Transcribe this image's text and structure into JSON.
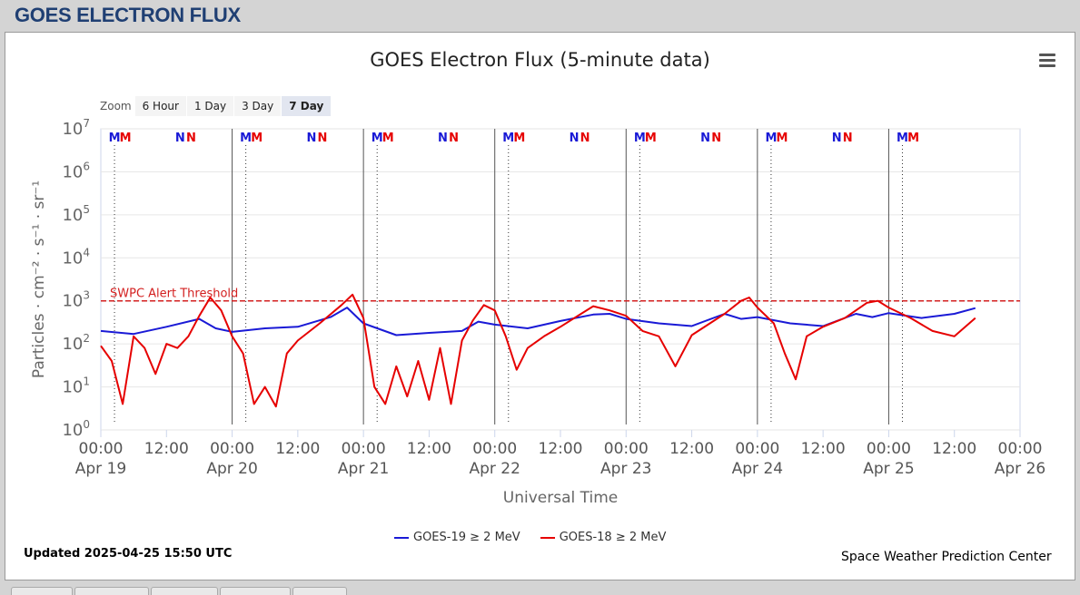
{
  "page": {
    "header_title": "GOES ELECTRON FLUX"
  },
  "zoom": {
    "label": "Zoom",
    "buttons": [
      "6 Hour",
      "1 Day",
      "3 Day",
      "7 Day"
    ],
    "active": "7 Day"
  },
  "footer": {
    "updated": "Updated 2025-04-25 15:50 UTC",
    "credit": "Space Weather Prediction Center"
  },
  "colors": {
    "goes19": "#1a1ad6",
    "goes18": "#e60000",
    "threshold": "#d32020",
    "header_text": "#1f3f73"
  },
  "icons": {
    "menu": "hamburger-menu-icon"
  },
  "chart_data": {
    "type": "line",
    "title": "GOES Electron Flux (5-minute data)",
    "xlabel": "Universal Time",
    "ylabel": "Particles · cm⁻² · s⁻¹ · sr⁻¹",
    "yscale": "log",
    "ylim": [
      1,
      10000000
    ],
    "xlim": [
      "2025-04-19 00:00",
      "2025-04-26 00:00"
    ],
    "y_ticks": [
      "10^0",
      "10^1",
      "10^2",
      "10^3",
      "10^4",
      "10^5",
      "10^6",
      "10^7"
    ],
    "x_ticks": [
      {
        "time": "00:00",
        "date": "Apr 19"
      },
      {
        "time": "12:00",
        "date": ""
      },
      {
        "time": "00:00",
        "date": "Apr 20"
      },
      {
        "time": "12:00",
        "date": ""
      },
      {
        "time": "00:00",
        "date": "Apr 21"
      },
      {
        "time": "12:00",
        "date": ""
      },
      {
        "time": "00:00",
        "date": "Apr 22"
      },
      {
        "time": "12:00",
        "date": ""
      },
      {
        "time": "00:00",
        "date": "Apr 23"
      },
      {
        "time": "12:00",
        "date": ""
      },
      {
        "time": "00:00",
        "date": "Apr 24"
      },
      {
        "time": "12:00",
        "date": ""
      },
      {
        "time": "00:00",
        "date": "Apr 25"
      },
      {
        "time": "12:00",
        "date": ""
      },
      {
        "time": "00:00",
        "date": "Apr 26"
      }
    ],
    "threshold": {
      "label": "SWPC Alert Threshold",
      "value": 1000
    },
    "markers": [
      {
        "label": "M",
        "series": "GOES-19",
        "x": "2025-04-19 02:30"
      },
      {
        "label": "M",
        "series": "GOES-18",
        "x": "2025-04-19 04:30"
      },
      {
        "label": "N",
        "series": "GOES-19",
        "x": "2025-04-19 14:30"
      },
      {
        "label": "N",
        "series": "GOES-18",
        "x": "2025-04-19 16:30"
      },
      {
        "label": "M",
        "series": "GOES-19",
        "x": "2025-04-20 02:30"
      },
      {
        "label": "M",
        "series": "GOES-18",
        "x": "2025-04-20 04:30"
      },
      {
        "label": "N",
        "series": "GOES-19",
        "x": "2025-04-20 14:30"
      },
      {
        "label": "N",
        "series": "GOES-18",
        "x": "2025-04-20 16:30"
      },
      {
        "label": "M",
        "series": "GOES-19",
        "x": "2025-04-21 02:30"
      },
      {
        "label": "M",
        "series": "GOES-18",
        "x": "2025-04-21 04:30"
      },
      {
        "label": "N",
        "series": "GOES-19",
        "x": "2025-04-21 14:30"
      },
      {
        "label": "N",
        "series": "GOES-18",
        "x": "2025-04-21 16:30"
      },
      {
        "label": "M",
        "series": "GOES-19",
        "x": "2025-04-22 02:30"
      },
      {
        "label": "M",
        "series": "GOES-18",
        "x": "2025-04-22 04:30"
      },
      {
        "label": "N",
        "series": "GOES-19",
        "x": "2025-04-22 14:30"
      },
      {
        "label": "N",
        "series": "GOES-18",
        "x": "2025-04-22 16:30"
      },
      {
        "label": "M",
        "series": "GOES-19",
        "x": "2025-04-23 02:30"
      },
      {
        "label": "M",
        "series": "GOES-18",
        "x": "2025-04-23 04:30"
      },
      {
        "label": "N",
        "series": "GOES-19",
        "x": "2025-04-23 14:30"
      },
      {
        "label": "N",
        "series": "GOES-18",
        "x": "2025-04-23 16:30"
      },
      {
        "label": "M",
        "series": "GOES-19",
        "x": "2025-04-24 02:30"
      },
      {
        "label": "M",
        "series": "GOES-18",
        "x": "2025-04-24 04:30"
      },
      {
        "label": "N",
        "series": "GOES-19",
        "x": "2025-04-24 14:30"
      },
      {
        "label": "N",
        "series": "GOES-18",
        "x": "2025-04-24 16:30"
      },
      {
        "label": "M",
        "series": "GOES-19",
        "x": "2025-04-25 02:30"
      },
      {
        "label": "M",
        "series": "GOES-18",
        "x": "2025-04-25 04:30"
      }
    ],
    "series": [
      {
        "name": "GOES-19 ≥ 2 MeV",
        "color": "#1a1ad6",
        "points": [
          [
            "2025-04-19 00:00",
            200
          ],
          [
            "2025-04-19 06:00",
            170
          ],
          [
            "2025-04-19 12:00",
            250
          ],
          [
            "2025-04-19 18:00",
            380
          ],
          [
            "2025-04-19 21:00",
            230
          ],
          [
            "2025-04-20 00:00",
            190
          ],
          [
            "2025-04-20 06:00",
            230
          ],
          [
            "2025-04-20 12:00",
            250
          ],
          [
            "2025-04-20 18:00",
            420
          ],
          [
            "2025-04-20 21:00",
            700
          ],
          [
            "2025-04-21 00:00",
            300
          ],
          [
            "2025-04-21 06:00",
            160
          ],
          [
            "2025-04-21 12:00",
            180
          ],
          [
            "2025-04-21 18:00",
            200
          ],
          [
            "2025-04-21 21:00",
            330
          ],
          [
            "2025-04-22 00:00",
            280
          ],
          [
            "2025-04-22 06:00",
            230
          ],
          [
            "2025-04-22 12:00",
            340
          ],
          [
            "2025-04-22 18:00",
            480
          ],
          [
            "2025-04-22 21:00",
            500
          ],
          [
            "2025-04-23 00:00",
            380
          ],
          [
            "2025-04-23 06:00",
            300
          ],
          [
            "2025-04-23 12:00",
            260
          ],
          [
            "2025-04-23 18:00",
            500
          ],
          [
            "2025-04-23 21:00",
            380
          ],
          [
            "2025-04-24 00:00",
            420
          ],
          [
            "2025-04-24 06:00",
            300
          ],
          [
            "2025-04-24 12:00",
            260
          ],
          [
            "2025-04-24 18:00",
            500
          ],
          [
            "2025-04-24 21:00",
            420
          ],
          [
            "2025-04-25 00:00",
            520
          ],
          [
            "2025-04-25 06:00",
            400
          ],
          [
            "2025-04-25 12:00",
            500
          ],
          [
            "2025-04-25 15:50",
            680
          ]
        ]
      },
      {
        "name": "GOES-18 ≥ 2 MeV",
        "color": "#e60000",
        "points": [
          [
            "2025-04-19 00:00",
            90
          ],
          [
            "2025-04-19 02:00",
            40
          ],
          [
            "2025-04-19 04:00",
            4
          ],
          [
            "2025-04-19 06:00",
            150
          ],
          [
            "2025-04-19 08:00",
            80
          ],
          [
            "2025-04-19 10:00",
            20
          ],
          [
            "2025-04-19 12:00",
            100
          ],
          [
            "2025-04-19 14:00",
            80
          ],
          [
            "2025-04-19 16:00",
            150
          ],
          [
            "2025-04-19 18:00",
            450
          ],
          [
            "2025-04-19 20:00",
            1200
          ],
          [
            "2025-04-19 22:00",
            600
          ],
          [
            "2025-04-20 00:00",
            150
          ],
          [
            "2025-04-20 02:00",
            60
          ],
          [
            "2025-04-20 04:00",
            4
          ],
          [
            "2025-04-20 06:00",
            10
          ],
          [
            "2025-04-20 08:00",
            3.5
          ],
          [
            "2025-04-20 10:00",
            60
          ],
          [
            "2025-04-20 12:00",
            120
          ],
          [
            "2025-04-20 16:00",
            300
          ],
          [
            "2025-04-20 20:00",
            800
          ],
          [
            "2025-04-20 22:00",
            1400
          ],
          [
            "2025-04-21 00:00",
            400
          ],
          [
            "2025-04-21 02:00",
            10
          ],
          [
            "2025-04-21 04:00",
            4
          ],
          [
            "2025-04-21 06:00",
            30
          ],
          [
            "2025-04-21 08:00",
            6
          ],
          [
            "2025-04-21 10:00",
            40
          ],
          [
            "2025-04-21 12:00",
            5
          ],
          [
            "2025-04-21 14:00",
            80
          ],
          [
            "2025-04-21 16:00",
            4
          ],
          [
            "2025-04-21 18:00",
            120
          ],
          [
            "2025-04-21 20:00",
            350
          ],
          [
            "2025-04-21 22:00",
            800
          ],
          [
            "2025-04-22 00:00",
            600
          ],
          [
            "2025-04-22 02:00",
            150
          ],
          [
            "2025-04-22 04:00",
            25
          ],
          [
            "2025-04-22 06:00",
            80
          ],
          [
            "2025-04-22 09:00",
            150
          ],
          [
            "2025-04-22 12:00",
            250
          ],
          [
            "2025-04-22 18:00",
            750
          ],
          [
            "2025-04-22 21:00",
            600
          ],
          [
            "2025-04-23 00:00",
            450
          ],
          [
            "2025-04-23 03:00",
            200
          ],
          [
            "2025-04-23 06:00",
            150
          ],
          [
            "2025-04-23 09:00",
            30
          ],
          [
            "2025-04-23 12:00",
            160
          ],
          [
            "2025-04-23 18:00",
            500
          ],
          [
            "2025-04-23 21:00",
            1000
          ],
          [
            "2025-04-23 22:30",
            1200
          ],
          [
            "2025-04-24 00:00",
            700
          ],
          [
            "2025-04-24 03:00",
            300
          ],
          [
            "2025-04-24 05:00",
            60
          ],
          [
            "2025-04-24 07:00",
            15
          ],
          [
            "2025-04-24 09:00",
            150
          ],
          [
            "2025-04-24 12:00",
            250
          ],
          [
            "2025-04-24 16:00",
            400
          ],
          [
            "2025-04-24 20:00",
            900
          ],
          [
            "2025-04-24 22:00",
            1000
          ],
          [
            "2025-04-25 00:00",
            700
          ],
          [
            "2025-04-25 04:00",
            400
          ],
          [
            "2025-04-25 08:00",
            200
          ],
          [
            "2025-04-25 12:00",
            150
          ],
          [
            "2025-04-25 15:50",
            400
          ]
        ]
      }
    ],
    "legend_position": "bottom-center"
  }
}
